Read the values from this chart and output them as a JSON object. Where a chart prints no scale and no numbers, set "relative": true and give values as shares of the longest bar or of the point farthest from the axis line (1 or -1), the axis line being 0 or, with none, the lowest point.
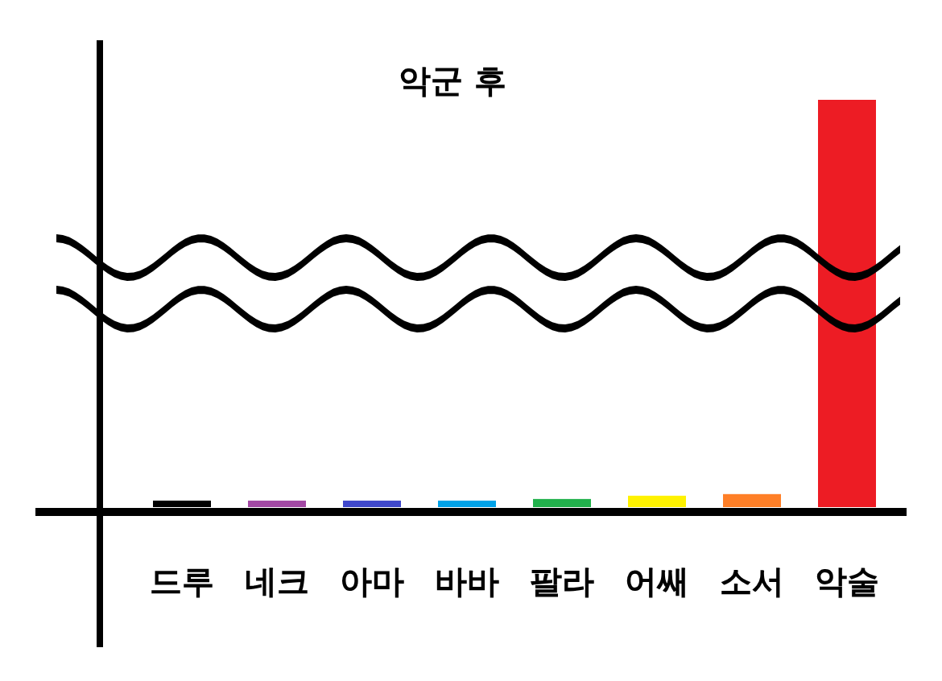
{
  "chart_data": {
    "type": "bar",
    "title": "악군 후",
    "relative": true,
    "categories": [
      "드루",
      "네크",
      "아마",
      "바바",
      "팔라",
      "어쌔",
      "소서",
      "악술"
    ],
    "values": [
      0.016,
      0.016,
      0.016,
      0.016,
      0.02,
      0.028,
      0.032,
      1
    ],
    "colors": [
      "#000000",
      "#a349a4",
      "#3f48cc",
      "#00a2e8",
      "#22b14c",
      "#fff200",
      "#ff7f27",
      "#ed1c24"
    ]
  }
}
